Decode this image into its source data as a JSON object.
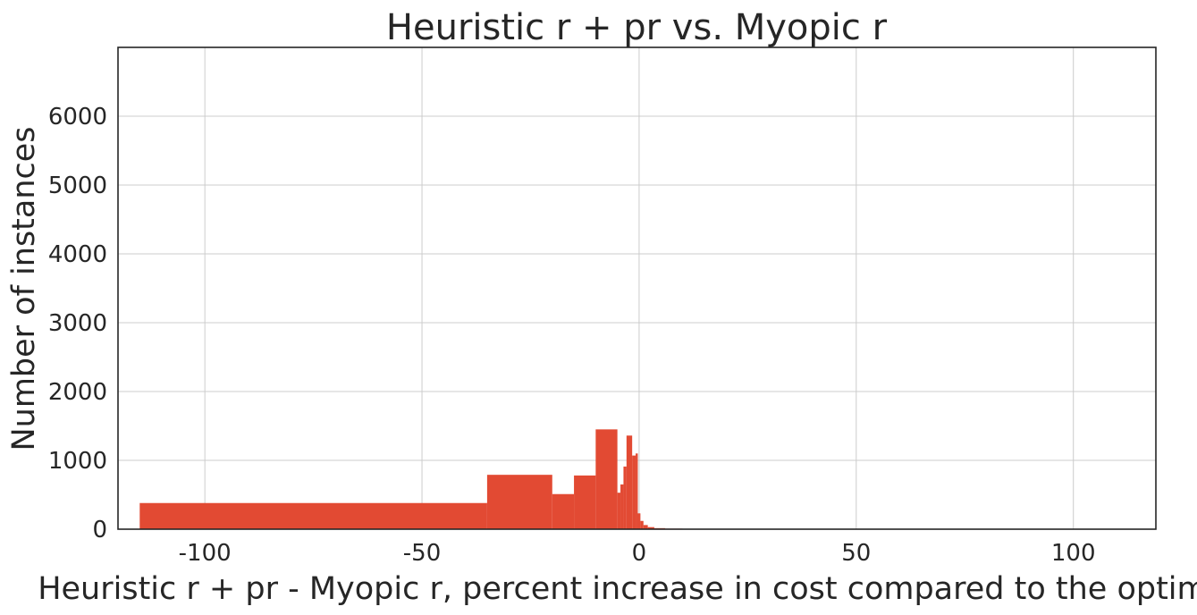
{
  "chart_data": {
    "type": "bar",
    "title": "Heuristic r + pr vs. Myopic r",
    "xlabel": "Heuristic r + pr - Myopic r, percent increase in cost compared to the optimal",
    "ylabel": "Number of instances",
    "xlim": [
      -120,
      119
    ],
    "ylim": [
      0,
      7000
    ],
    "x_ticks": [
      -100,
      -50,
      0,
      50,
      100
    ],
    "x_tick_labels": [
      "-100",
      "-50",
      "0",
      "50",
      "100"
    ],
    "y_ticks": [
      0,
      1000,
      2000,
      3000,
      4000,
      5000,
      6000
    ],
    "y_tick_labels": [
      "0",
      "1000",
      "2000",
      "3000",
      "4000",
      "5000",
      "6000"
    ],
    "grid": true,
    "color": "#e24a33",
    "bins": [
      {
        "x0": -115,
        "x1": -35,
        "count": 380
      },
      {
        "x0": -35,
        "x1": -20,
        "count": 790
      },
      {
        "x0": -20,
        "x1": -15,
        "count": 510
      },
      {
        "x0": -15,
        "x1": -10,
        "count": 780
      },
      {
        "x0": -10,
        "x1": -5,
        "count": 1450
      },
      {
        "x0": -5,
        "x1": -4.3,
        "count": 530
      },
      {
        "x0": -4.3,
        "x1": -3.6,
        "count": 650
      },
      {
        "x0": -3.6,
        "x1": -2.9,
        "count": 910
      },
      {
        "x0": -2.9,
        "x1": -1.6,
        "count": 1360
      },
      {
        "x0": -1.6,
        "x1": -0.8,
        "count": 1070
      },
      {
        "x0": -0.8,
        "x1": -0.3,
        "count": 1100
      },
      {
        "x0": -0.3,
        "x1": 0.3,
        "count": 230
      },
      {
        "x0": 0.3,
        "x1": 1,
        "count": 120
      },
      {
        "x0": 1,
        "x1": 2,
        "count": 60
      },
      {
        "x0": 2,
        "x1": 3.5,
        "count": 30
      },
      {
        "x0": 3.5,
        "x1": 6,
        "count": 15
      },
      {
        "x0": 6,
        "x1": 10,
        "count": 8
      },
      {
        "x0": 10,
        "x1": 20,
        "count": 5
      },
      {
        "x0": 20,
        "x1": 110,
        "count": 3
      }
    ]
  }
}
